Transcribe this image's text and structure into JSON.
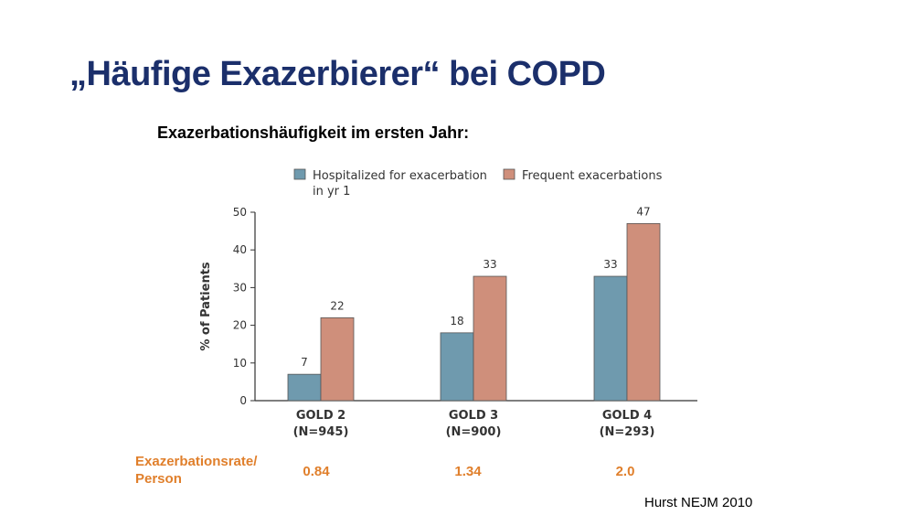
{
  "slide": {
    "title": "„Häufige Exazerbierer“ bei COPD",
    "subtitle": "Exazerbationshäufigkeit im ersten Jahr:",
    "citation": "Hurst NEJM 2010"
  },
  "rates": {
    "label_line1": "Exazerbationsrate/",
    "label_line2": "Person",
    "values": [
      "0.84",
      "1.34",
      "2.0"
    ]
  },
  "colors": {
    "title": "#1b2f6b",
    "hospitalized": "#6f9aae",
    "frequent": "#cf8f7b",
    "rate": "#e07f2b"
  },
  "chart_data": {
    "type": "bar",
    "categories": [
      "GOLD 2\n(N=945)",
      "GOLD 3\n(N=900)",
      "GOLD 4\n(N=293)"
    ],
    "category_lines": [
      [
        "GOLD 2",
        "(N=945)"
      ],
      [
        "GOLD 3",
        "(N=900)"
      ],
      [
        "GOLD 4",
        "(N=293)"
      ]
    ],
    "series": [
      {
        "name": "Hospitalized for exacerbation in yr 1",
        "name_lines": [
          "Hospitalized for exacerbation",
          "in yr 1"
        ],
        "values": [
          7,
          18,
          33
        ],
        "color": "#6f9aae"
      },
      {
        "name": "Frequent exacerbations",
        "name_lines": [
          "Frequent exacerbations"
        ],
        "values": [
          22,
          33,
          47
        ],
        "color": "#cf8f7b"
      }
    ],
    "ylabel": "% of Patients",
    "xlabel": "",
    "ylim": [
      0,
      50
    ],
    "yticks": [
      0,
      10,
      20,
      30,
      40,
      50
    ],
    "legend": "top",
    "grid": false
  }
}
